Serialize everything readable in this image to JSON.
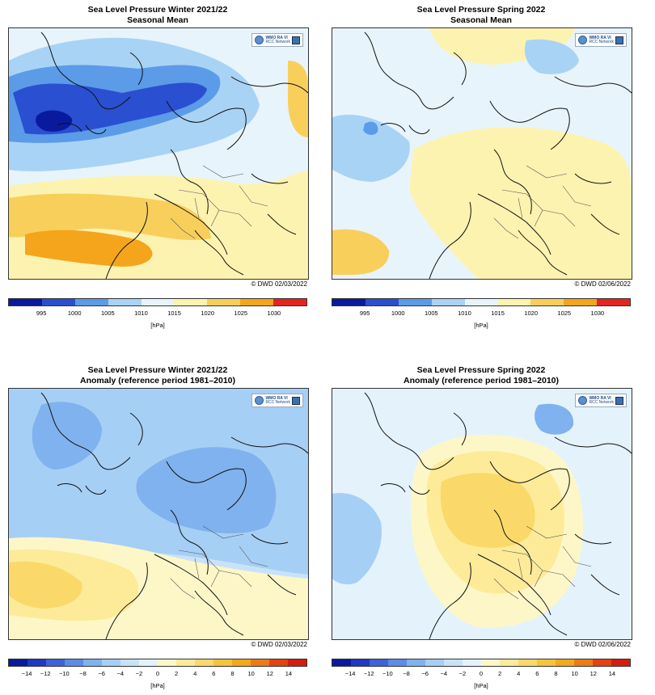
{
  "panels": [
    {
      "title1": "Sea Level Pressure Winter 2021/22",
      "title2": "Seasonal Mean",
      "credit": "© DWD 02/03/2022",
      "logo_text1": "WMO RA VI",
      "logo_text2": "RCC Network",
      "scale": "mean",
      "field": "winter_mean",
      "coastline_color": "#111111"
    },
    {
      "title1": "Sea Level Pressure Spring 2022",
      "title2": "Seasonal Mean",
      "credit": "© DWD 02/06/2022",
      "logo_text1": "WMO RA VI",
      "logo_text2": "RCC Network",
      "scale": "mean",
      "field": "spring_mean",
      "coastline_color": "#111111"
    },
    {
      "title1": "Sea Level Pressure Winter 2021/22",
      "title2": "Anomaly (reference period 1981–2010)",
      "credit": "© DWD 02/03/2022",
      "logo_text1": "WMO RA VI",
      "logo_text2": "RCC Network",
      "scale": "anomaly",
      "field": "winter_anomaly",
      "coastline_color": "#111111"
    },
    {
      "title1": "Sea Level Pressure Spring 2022",
      "title2": "Anomaly (reference period 1981–2010)",
      "credit": "© DWD 02/06/2022",
      "logo_text1": "WMO RA VI",
      "logo_text2": "RCC Network",
      "scale": "anomaly",
      "field": "spring_anomaly",
      "coastline_color": "#111111"
    }
  ],
  "scales": {
    "mean": {
      "unit": "[hPa]",
      "ticks": [
        "995",
        "1000",
        "1005",
        "1010",
        "1015",
        "1020",
        "1025",
        "1030"
      ],
      "colors": [
        "#0a1a9e",
        "#2a4fd0",
        "#5b9be8",
        "#a9d3f5",
        "#e8f4fb",
        "#fdf3b0",
        "#f9cf5c",
        "#f4a51c",
        "#e52420"
      ]
    },
    "anomaly": {
      "unit": "[hPa]",
      "ticks": [
        "−14",
        "−12",
        "−10",
        "−8",
        "−6",
        "−4",
        "−2",
        "0",
        "2",
        "4",
        "6",
        "8",
        "10",
        "12",
        "14"
      ],
      "colors": [
        "#0a1a9e",
        "#1f39c0",
        "#3d63d8",
        "#5b8de6",
        "#80b2ef",
        "#a6cff5",
        "#c8e3f9",
        "#e4f2fb",
        "#fdf7c8",
        "#fdeb9a",
        "#fad96a",
        "#f6c43c",
        "#f3a91c",
        "#ec7d14",
        "#e4420f",
        "#d31d10"
      ]
    }
  },
  "fields": {
    "winter_mean": {
      "background": "#e8f4fb",
      "blobs": [
        {
          "c": "#fdf3b0",
          "shape": "south"
        },
        {
          "c": "#f9cf5c",
          "shape": "south2"
        },
        {
          "c": "#f4a51c",
          "shape": "south3"
        },
        {
          "c": "#a9d3f5",
          "shape": "lowband1"
        },
        {
          "c": "#5b9be8",
          "shape": "lowband2"
        },
        {
          "c": "#2a4fd0",
          "shape": "lowband3"
        },
        {
          "c": "#0a1a9e",
          "shape": "iceland"
        },
        {
          "c": "#f9cf5c",
          "shape": "eastedge"
        }
      ]
    },
    "spring_mean": {
      "background": "#e8f4fb",
      "blobs": [
        {
          "c": "#fdf3b0",
          "shape": "spring_high"
        },
        {
          "c": "#fdf3b0",
          "shape": "spring_ne"
        },
        {
          "c": "#f9cf5c",
          "shape": "spring_sw"
        },
        {
          "c": "#a9d3f5",
          "shape": "spring_barents"
        },
        {
          "c": "#a9d3f5",
          "shape": "spring_greenland"
        },
        {
          "c": "#5b9be8",
          "shape": "spring_dot"
        }
      ]
    },
    "winter_anomaly": {
      "background": "#c8e3f9",
      "blobs": [
        {
          "c": "#a6cff5",
          "shape": "wa_north"
        },
        {
          "c": "#80b2ef",
          "shape": "wa_scand"
        },
        {
          "c": "#80b2ef",
          "shape": "wa_green"
        },
        {
          "c": "#fdf7c8",
          "shape": "wa_south"
        },
        {
          "c": "#fdeb9a",
          "shape": "wa_south2"
        },
        {
          "c": "#fad96a",
          "shape": "wa_azores"
        }
      ]
    },
    "spring_anomaly": {
      "background": "#c8e3f9",
      "blobs": [
        {
          "c": "#e4f2fb",
          "shape": "sa_wide"
        },
        {
          "c": "#fdf7c8",
          "shape": "sa_central"
        },
        {
          "c": "#fdeb9a",
          "shape": "sa_central2"
        },
        {
          "c": "#fad96a",
          "shape": "sa_core"
        },
        {
          "c": "#a6cff5",
          "shape": "sa_atlantic"
        },
        {
          "c": "#80b2ef",
          "shape": "sa_green"
        }
      ]
    }
  }
}
